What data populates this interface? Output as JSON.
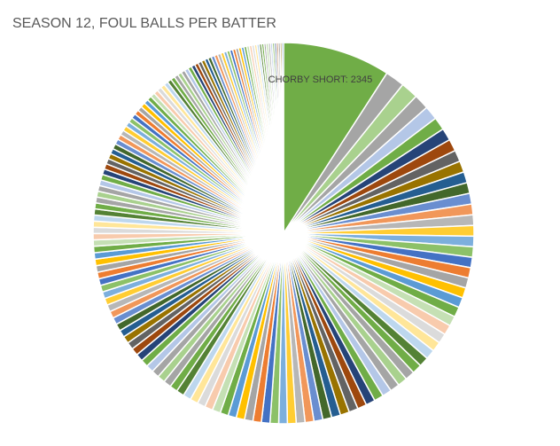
{
  "chart_data": {
    "type": "pie",
    "title": "SEASON  12, FOUL BALLS PER BATTER",
    "categories": [
      "CHORBY SHORT",
      null,
      null,
      null,
      null,
      null,
      null,
      null,
      null,
      null,
      null,
      null,
      null,
      null,
      null,
      null,
      null,
      null,
      null,
      null,
      null,
      null,
      null,
      null,
      null,
      null,
      null,
      null,
      null,
      null,
      null,
      null,
      null,
      null,
      null,
      null,
      null,
      null,
      null,
      null,
      null,
      null,
      null,
      null,
      null,
      null,
      null,
      null,
      null,
      null,
      null,
      null,
      null,
      null,
      null,
      null,
      null,
      null,
      null,
      null,
      null,
      null,
      null,
      null,
      null,
      null,
      null,
      null,
      null,
      null,
      null,
      null,
      null,
      null,
      null,
      null,
      null,
      null,
      null,
      null,
      null,
      null,
      null,
      null,
      null,
      null,
      null,
      null,
      null,
      null,
      null,
      null,
      null,
      null,
      null,
      null,
      null,
      null,
      null,
      null,
      null,
      null,
      null,
      null,
      null,
      null,
      null,
      null,
      null,
      null,
      null,
      null,
      null,
      null,
      null,
      null,
      null,
      null,
      null,
      null,
      null,
      null,
      null,
      null,
      null,
      null,
      null,
      null,
      null,
      null,
      null,
      null,
      null,
      null,
      null,
      null,
      null,
      null,
      null,
      null,
      null,
      null,
      null,
      null,
      null,
      null,
      null,
      null,
      null,
      null,
      null,
      null,
      null,
      null,
      null,
      null,
      null,
      null,
      null,
      null,
      null
    ],
    "values": [
      2345,
      420,
      380,
      330,
      300,
      280,
      270,
      260,
      250,
      245,
      240,
      235,
      234,
      232,
      231,
      230,
      228,
      227,
      226,
      224,
      223,
      222,
      220,
      219,
      218,
      216,
      215,
      214,
      212,
      211,
      210,
      208,
      207,
      206,
      204,
      203,
      202,
      200,
      199,
      198,
      196,
      195,
      194,
      192,
      191,
      190,
      188,
      187,
      186,
      184,
      183,
      182,
      180,
      179,
      178,
      176,
      175,
      174,
      172,
      171,
      170,
      168,
      167,
      166,
      164,
      163,
      162,
      160,
      159,
      158,
      156,
      155,
      154,
      152,
      151,
      150,
      148,
      147,
      146,
      144,
      143,
      142,
      140,
      139,
      138,
      136,
      135,
      134,
      132,
      131,
      130,
      128,
      127,
      126,
      124,
      123,
      122,
      120,
      119,
      118,
      116,
      115,
      114,
      112,
      111,
      110,
      108,
      107,
      106,
      104,
      103,
      102,
      100,
      99,
      98,
      96,
      95,
      94,
      92,
      91,
      90,
      88,
      87,
      86,
      84,
      83,
      82,
      80,
      79,
      78,
      76,
      75,
      74,
      72,
      71,
      70,
      68,
      67,
      66,
      64,
      63,
      62,
      60,
      59,
      58,
      56,
      55,
      54,
      52,
      51,
      50,
      48,
      47,
      46,
      44,
      43,
      42,
      40,
      39,
      38,
      36
    ],
    "value_labels": [
      "CHORBY SHORT: 2345",
      null,
      null,
      null,
      null,
      null,
      null,
      null,
      null,
      null,
      null,
      null,
      null,
      null,
      null,
      null,
      null,
      null,
      null,
      null,
      null,
      null,
      null,
      null,
      null,
      null,
      null,
      null,
      null,
      null,
      null,
      null,
      null,
      null,
      null,
      null,
      null,
      null,
      null,
      null,
      null,
      null,
      null,
      null,
      null,
      null,
      null,
      null,
      null,
      null,
      null,
      null,
      null,
      null,
      null,
      null,
      null,
      null,
      null,
      null,
      null,
      null,
      null,
      null,
      null,
      null,
      null,
      null,
      null,
      null,
      null,
      null,
      null,
      null,
      null,
      null,
      null,
      null,
      null,
      null,
      null,
      null,
      null,
      null,
      null,
      null,
      null,
      null,
      null,
      null,
      null,
      null,
      null,
      null,
      null,
      null,
      null,
      null,
      null,
      null,
      null,
      null,
      null,
      null,
      null,
      null,
      null,
      null,
      null,
      null,
      null,
      null,
      null,
      null,
      null,
      null,
      null,
      null,
      null,
      null,
      null,
      null,
      null,
      null,
      null,
      null,
      null,
      null,
      null,
      null,
      null,
      null,
      null,
      null,
      null,
      null,
      null,
      null,
      null,
      null,
      null,
      null,
      null,
      null,
      null,
      null,
      null,
      null,
      null,
      null,
      null,
      null,
      null,
      null,
      null,
      null,
      null,
      null,
      null,
      null,
      null
    ],
    "colors": [
      "#70ad47",
      "#a5a5a5",
      "#a9d18e",
      "#a5a5a5",
      "#b4c7e7",
      "#70ad47",
      "#264478",
      "#9e480e",
      "#636363",
      "#997300",
      "#255e91",
      "#43682b",
      "#698ed0",
      "#f1975a",
      "#b7b7b7",
      "#ffcd33",
      "#7cafdd",
      "#8cc168",
      "#4472c4",
      "#ed7d31",
      "#a5a5a5",
      "#ffc000",
      "#5b9bd5",
      "#70ad47",
      "#c5e0b4",
      "#f8cbad",
      "#dbdbdb",
      "#ffe699",
      "#bdd7ee",
      "#548235"
    ]
  }
}
